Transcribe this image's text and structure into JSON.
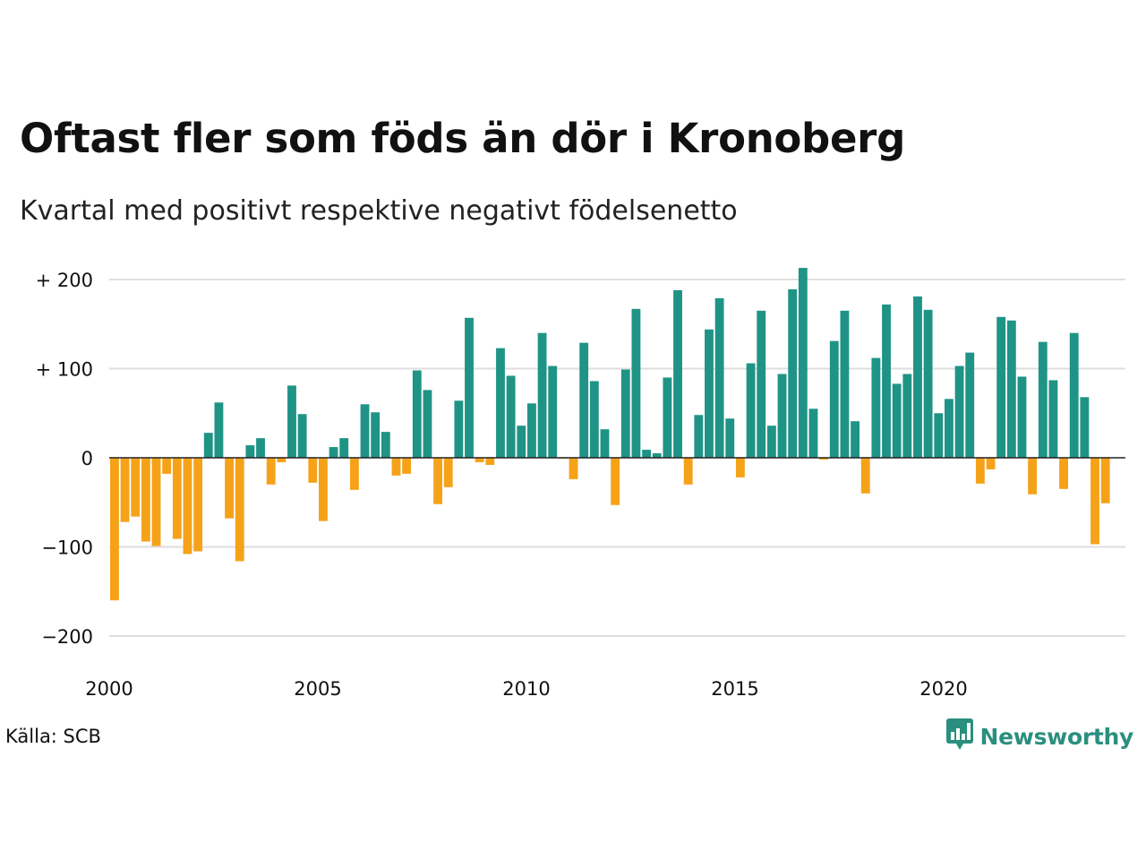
{
  "header": {
    "title": "Oftast fler som föds än dör i Kronoberg",
    "subtitle": "Kvartal med positivt respektive negativt födelsenetto"
  },
  "footer": {
    "source": "Källa: SCB",
    "brand": "Newsworthy",
    "brand_icon": "newsworthy-bar-chart-logo-icon"
  },
  "chart_data": {
    "type": "bar",
    "title": "Oftast fler som föds än dör i Kronoberg",
    "subtitle": "Kvartal med positivt respektive negativt födelsenetto",
    "xlabel": "",
    "ylabel": "",
    "x_start": 2000.0,
    "x_step": 0.25,
    "values": [
      -160,
      -72,
      -66,
      -94,
      -99,
      -18,
      -91,
      -108,
      -105,
      28,
      62,
      -68,
      -116,
      14,
      22,
      -30,
      -5,
      81,
      49,
      -28,
      -71,
      12,
      22,
      -36,
      60,
      51,
      29,
      -20,
      -18,
      98,
      76,
      -52,
      -33,
      64,
      157,
      -5,
      -8,
      123,
      92,
      36,
      61,
      140,
      103,
      -1,
      -24,
      129,
      86,
      32,
      -53,
      99,
      167,
      9,
      5,
      90,
      188,
      -30,
      48,
      144,
      179,
      44,
      -22,
      106,
      165,
      36,
      94,
      189,
      213,
      55,
      -2,
      131,
      165,
      41,
      -40,
      112,
      172,
      83,
      94,
      181,
      166,
      50,
      66,
      103,
      118,
      -29,
      -13,
      158,
      154,
      91,
      -41,
      130,
      87,
      -35,
      140,
      68,
      -97,
      -51
    ],
    "ylim": [
      -225,
      225
    ],
    "yticks": [
      -200,
      -100,
      0,
      100,
      200
    ],
    "ytick_labels": [
      "−200",
      "−100",
      "0",
      "+ 100",
      "+ 200"
    ],
    "xlim": [
      2000,
      2024.5
    ],
    "xticks": [
      2000,
      2005,
      2010,
      2015,
      2020
    ],
    "xtick_labels": [
      "2000",
      "2005",
      "2010",
      "2015",
      "2020"
    ],
    "colors": {
      "positive": "#1f9486",
      "negative": "#f5a219",
      "grid": "#dedede",
      "zero_line": "#222222"
    },
    "grid": true,
    "legend": "none"
  }
}
